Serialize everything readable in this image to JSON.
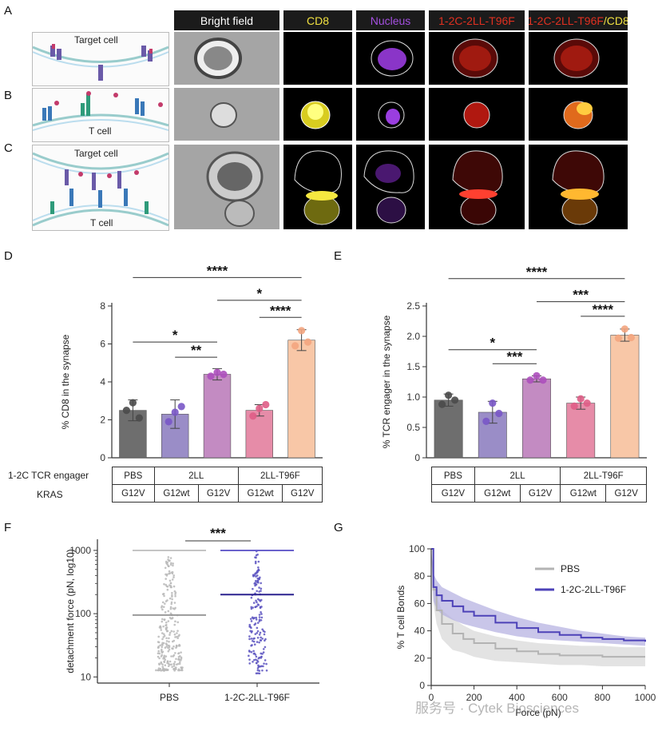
{
  "panel_labels": [
    "A",
    "B",
    "C",
    "D",
    "E",
    "F",
    "G"
  ],
  "schematic": {
    "target_cell": "Target cell",
    "t_cell": "T cell",
    "target_cell_c": "Target cell",
    "t_cell_c": "T cell"
  },
  "columns": {
    "bright": "Bright field",
    "cd8": "CD8",
    "nucleus": "Nucleus",
    "engager": "1-2C-2LL-T96F",
    "merge_a": "1-2C-2LL-T96F",
    "merge_b": "/CD8"
  },
  "colors": {
    "cd8": "#f0e040",
    "nucleus": "#9b45d8",
    "engager": "#e03020",
    "merge": "#ff9a28"
  },
  "table": {
    "row1_label": "1-2C TCR engager",
    "row2_label": "KRAS",
    "engagers": [
      "PBS",
      "2LL",
      "2LL-T96F"
    ],
    "kras": [
      "G12V",
      "G12wt",
      "G12V",
      "G12wt",
      "G12V"
    ]
  },
  "chart_data": [
    {
      "panel": "D",
      "type": "bar",
      "ylabel": "% CD8 in the synapse",
      "ylim": [
        0,
        8
      ],
      "yticks": [
        0,
        2,
        4,
        6,
        8
      ],
      "categories": [
        "PBS G12V",
        "2LL G12wt",
        "2LL G12V",
        "2LL-T96F G12wt",
        "2LL-T96F G12V"
      ],
      "values": [
        2.5,
        2.3,
        4.4,
        2.5,
        6.2
      ],
      "err": [
        0.55,
        0.75,
        0.3,
        0.3,
        0.55
      ],
      "points": [
        [
          2.5,
          2.9,
          2.1
        ],
        [
          1.9,
          2.4,
          2.7
        ],
        [
          4.3,
          4.5,
          4.4
        ],
        [
          2.2,
          2.6,
          2.8
        ],
        [
          5.9,
          6.7,
          6.1
        ]
      ],
      "colors": [
        "#6e6e6e",
        "#9a8dc7",
        "#c38bc2",
        "#e68ca8",
        "#f8c7a7"
      ],
      "dotcolors": [
        "#4a4a4a",
        "#7957c6",
        "#ad4fbd",
        "#df5d86",
        "#f3a580"
      ],
      "significance": [
        {
          "a": 0,
          "b": 4,
          "label": "****",
          "y": 9.5
        },
        {
          "a": 2,
          "b": 4,
          "label": "*",
          "y": 8.3
        },
        {
          "a": 3,
          "b": 4,
          "label": "****",
          "y": 7.4
        },
        {
          "a": 0,
          "b": 2,
          "label": "*",
          "y": 6.1
        },
        {
          "a": 1,
          "b": 2,
          "label": "**",
          "y": 5.3
        }
      ]
    },
    {
      "panel": "E",
      "type": "bar",
      "ylabel": "% TCR engager in the synapse",
      "ylim": [
        0,
        2.5
      ],
      "yticks": [
        0,
        0.5,
        1.0,
        1.5,
        2.0,
        2.5
      ],
      "categories": [
        "PBS G12V",
        "2LL G12wt",
        "2LL G12V",
        "2LL-T96F G12wt",
        "2LL-T96F G12V"
      ],
      "values": [
        0.95,
        0.75,
        1.3,
        0.9,
        2.02
      ],
      "err": [
        0.1,
        0.18,
        0.05,
        0.1,
        0.1
      ],
      "points": [
        [
          0.88,
          1.03,
          0.95
        ],
        [
          0.6,
          0.9,
          0.73
        ],
        [
          1.28,
          1.35,
          1.28
        ],
        [
          0.85,
          0.97,
          0.9
        ],
        [
          1.97,
          2.12,
          1.98
        ]
      ],
      "colors": [
        "#6e6e6e",
        "#9a8dc7",
        "#c38bc2",
        "#e68ca8",
        "#f8c7a7"
      ],
      "dotcolors": [
        "#4a4a4a",
        "#7957c6",
        "#ad4fbd",
        "#df5d86",
        "#f3a580"
      ],
      "significance": [
        {
          "a": 0,
          "b": 4,
          "label": "****",
          "y": 2.95
        },
        {
          "a": 2,
          "b": 4,
          "label": "***",
          "y": 2.57
        },
        {
          "a": 3,
          "b": 4,
          "label": "****",
          "y": 2.33
        },
        {
          "a": 0,
          "b": 2,
          "label": "*",
          "y": 1.78
        },
        {
          "a": 1,
          "b": 2,
          "label": "***",
          "y": 1.55
        }
      ]
    },
    {
      "panel": "F",
      "type": "scatter",
      "ylabel": "detachment force (pN, log10)",
      "yscale": "log",
      "ylim": [
        8,
        1500
      ],
      "yticks": [
        10,
        100,
        1000
      ],
      "yticklabels": [
        "10",
        "100",
        "1000"
      ],
      "categories": [
        "PBS",
        "1-2C-2LL-T96F"
      ],
      "medians": [
        95,
        200
      ],
      "maxline": [
        1000,
        1000
      ],
      "colors": [
        "#b8b8b8",
        "#5a52c0"
      ],
      "mediancolors": [
        "#9a9a9a",
        "#2b228f"
      ],
      "significance": [
        {
          "a": 0,
          "b": 1,
          "label": "***"
        }
      ]
    },
    {
      "panel": "G",
      "type": "line",
      "xlabel": "Force (pN)",
      "ylabel": "% T cell Bonds",
      "xlim": [
        0,
        1000
      ],
      "ylim": [
        0,
        100
      ],
      "xticks": [
        0,
        200,
        400,
        600,
        800,
        1000
      ],
      "yticks": [
        0,
        20,
        40,
        60,
        80,
        100
      ],
      "series": [
        {
          "name": "PBS",
          "color": "#b3b3b3",
          "band": "#d9d9d9",
          "x": [
            0,
            10,
            25,
            50,
            100,
            150,
            200,
            300,
            400,
            500,
            600,
            700,
            800,
            900,
            1000
          ],
          "y": [
            100,
            70,
            55,
            45,
            38,
            34,
            31,
            27,
            25,
            23,
            22,
            22,
            21,
            21,
            21
          ],
          "lo": [
            100,
            60,
            45,
            34,
            26,
            24,
            21,
            18,
            17,
            16,
            15,
            15,
            14,
            14,
            14
          ],
          "hi": [
            100,
            82,
            65,
            55,
            49,
            44,
            40,
            36,
            33,
            31,
            30,
            29,
            29,
            28,
            28
          ]
        },
        {
          "name": "1-2C-2LL-T96F",
          "color": "#4d42b8",
          "band": "#b2aee0",
          "x": [
            0,
            10,
            25,
            50,
            100,
            150,
            200,
            300,
            400,
            500,
            600,
            700,
            800,
            900,
            1000
          ],
          "y": [
            100,
            72,
            66,
            62,
            58,
            54,
            51,
            46,
            42,
            39,
            37,
            35,
            34,
            33,
            32
          ],
          "lo": [
            100,
            62,
            56,
            52,
            48,
            45,
            43,
            39,
            36,
            34,
            33,
            32,
            31,
            30,
            29
          ],
          "hi": [
            100,
            82,
            77,
            72,
            68,
            64,
            61,
            55,
            50,
            46,
            43,
            40,
            38,
            36,
            35
          ]
        }
      ]
    }
  ],
  "watermark": "服务号 · Cytek Biosciences"
}
